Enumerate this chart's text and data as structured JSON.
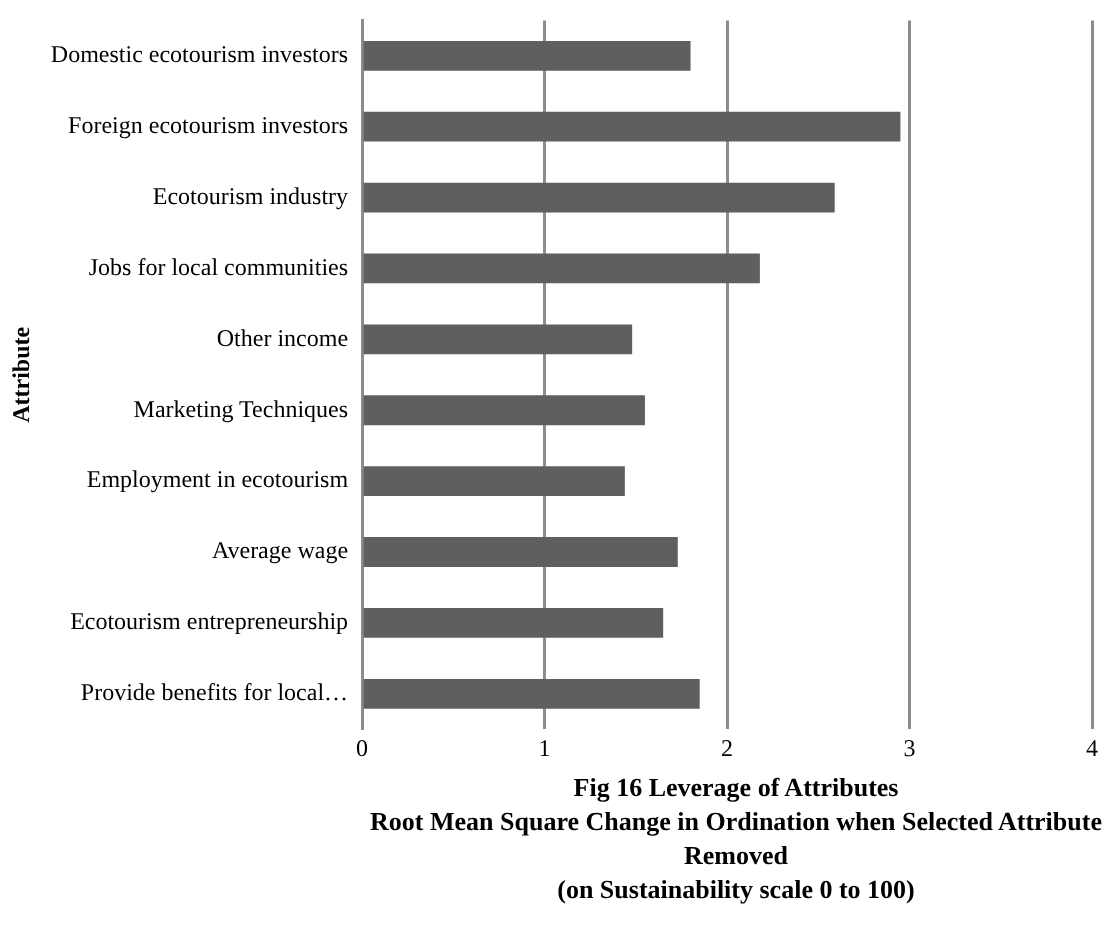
{
  "chart_data": {
    "type": "bar",
    "orientation": "horizontal",
    "title": "Fig 16  Leverage of Attributes",
    "xlabel": "Root Mean Square Change in Ordination when Selected Attribute Removed\n(on Sustainability scale 0 to 100)",
    "ylabel": "Attribute",
    "categories": [
      "Domestic ecotourism investors",
      "Foreign ecotourism investors",
      "Ecotourism industry",
      "Jobs for local communities",
      "Other income",
      "Marketing Techniques",
      "Employment in ecotourism",
      "Average wage",
      "Ecotourism entrepreneurship",
      "Provide benefits for local…"
    ],
    "values": [
      1.8,
      2.95,
      2.59,
      2.18,
      1.48,
      1.55,
      1.44,
      1.73,
      1.65,
      1.85
    ],
    "color": "#5f5f5f",
    "xlim": [
      0,
      4
    ],
    "xticks": [
      0,
      1,
      2,
      3,
      4
    ],
    "grid": "x",
    "legend": false
  }
}
